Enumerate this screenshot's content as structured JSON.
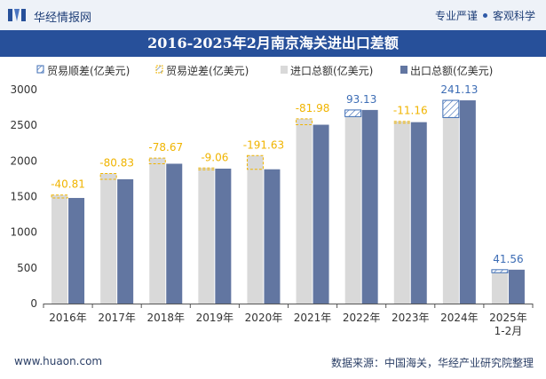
{
  "header": {
    "site_name": "华经情报网",
    "slogan_left": "专业严谨",
    "slogan_right": "客观科学"
  },
  "title": "2016-2025年2月南京海关进出口差额",
  "footer": {
    "website": "www.huaon.com",
    "source": "数据来源：中国海关，华经产业研究院整理"
  },
  "colors": {
    "import": "#d9d9d9",
    "export": "#6276a1",
    "surplus": "#3d6db5",
    "deficit": "#f0b400",
    "brand": "#27509a"
  },
  "chart_data": {
    "type": "bar",
    "title": "2016-2025年2月南京海关进出口差额",
    "categories": [
      "2016年",
      "2017年",
      "2018年",
      "2019年",
      "2020年",
      "2021年",
      "2022年",
      "2023年",
      "2024年",
      "2025年\n1-2月"
    ],
    "legend": [
      "贸易顺差(亿美元)",
      "贸易逆差(亿美元)",
      "进口总额(亿美元)",
      "出口总额(亿美元)"
    ],
    "legend_position": "top",
    "ylim": [
      0,
      3000
    ],
    "yticks": [
      0,
      500,
      1000,
      1500,
      2000,
      2500,
      3000
    ],
    "grid": false,
    "series": [
      {
        "name": "进口总额(亿美元)",
        "values": [
          1522,
          1824,
          2040,
          1901,
          2075,
          2590,
          2622,
          2555,
          2609,
          433
        ]
      },
      {
        "name": "出口总额(亿美元)",
        "values": [
          1481,
          1743,
          1961,
          1892,
          1883,
          2508,
          2715,
          2544,
          2850,
          475
        ]
      }
    ],
    "balance": [
      -40.81,
      -80.83,
      -78.67,
      -9.06,
      -191.63,
      -81.98,
      93.13,
      -11.16,
      241.13,
      41.56
    ],
    "balance_labels": [
      "-40.81",
      "-80.83",
      "-78.67",
      "-9.06",
      "-191.63",
      "-81.98",
      "93.13",
      "-11.16",
      "241.13",
      "41.56"
    ]
  }
}
